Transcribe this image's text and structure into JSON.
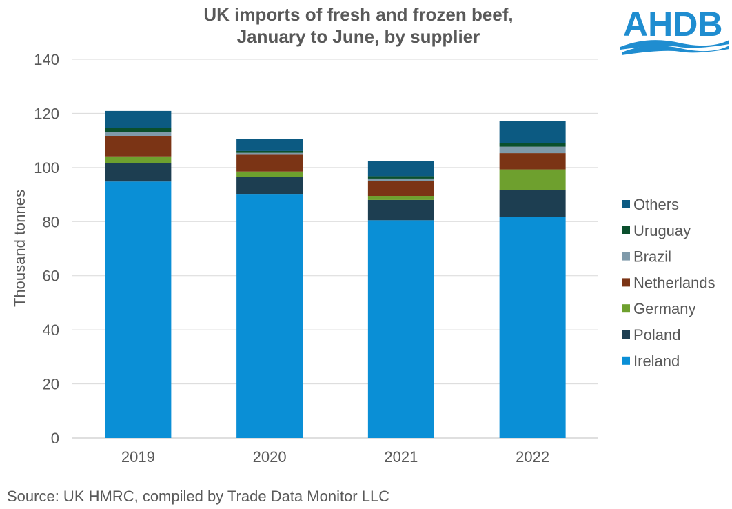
{
  "chart_data": {
    "type": "bar",
    "stacked": true,
    "title": [
      "UK imports of fresh and frozen beef,",
      "January to June, by supplier"
    ],
    "ylabel": "Thousand tonnes",
    "ylim": [
      0,
      140
    ],
    "yticks": [
      "0",
      "20",
      "40",
      "60",
      "80",
      "100",
      "120",
      "140"
    ],
    "categories": [
      "2019",
      "2020",
      "2021",
      "2022"
    ],
    "series": [
      {
        "name": "Ireland",
        "color": "#0a8fd6",
        "values": [
          94.8,
          90.0,
          80.5,
          81.8
        ]
      },
      {
        "name": "Poland",
        "color": "#1d3e51",
        "values": [
          6.7,
          6.5,
          7.5,
          9.9
        ]
      },
      {
        "name": "Germany",
        "color": "#6ea02e",
        "values": [
          2.6,
          2.0,
          1.5,
          7.6
        ]
      },
      {
        "name": "Netherlands",
        "color": "#7b3415",
        "values": [
          7.6,
          6.2,
          5.6,
          6.0
        ]
      },
      {
        "name": "Brazil",
        "color": "#7f9aaa",
        "values": [
          1.5,
          0.7,
          0.8,
          2.4
        ]
      },
      {
        "name": "Uruguay",
        "color": "#0a4f2d",
        "values": [
          1.3,
          0.7,
          0.9,
          1.4
        ]
      },
      {
        "name": "Others",
        "color": "#0c5a82",
        "values": [
          6.4,
          4.5,
          5.6,
          8.0
        ]
      }
    ],
    "grid": true,
    "legend_position": "right"
  },
  "source": "Source: UK HMRC, compiled by Trade Data Monitor LLC",
  "logo": {
    "text": "AHDB",
    "color": "#1f8dd0"
  }
}
